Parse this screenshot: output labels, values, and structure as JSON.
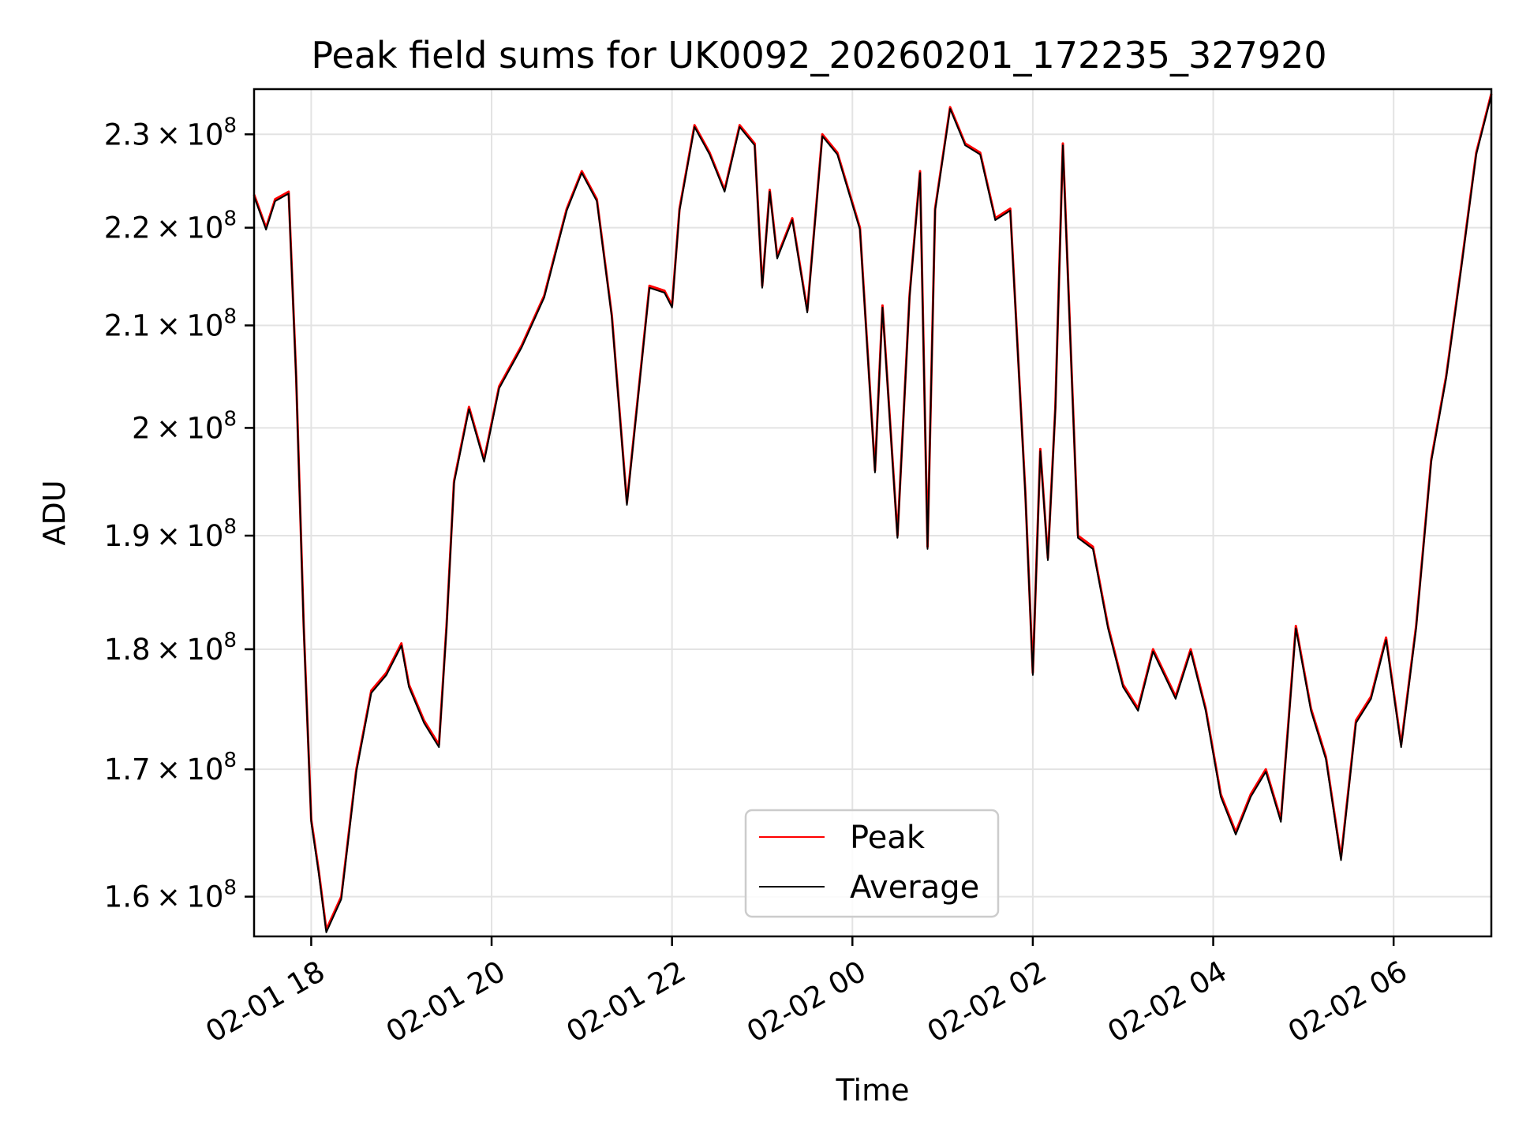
{
  "chart_data": {
    "type": "line",
    "title": "Peak field sums for UK0092_20260201_172235_327920",
    "xlabel": "Time",
    "ylabel": "ADU",
    "y_scale": "log",
    "ylim": [
      157000000,
      235000000
    ],
    "xlim": [
      "2026-02-01 17:22",
      "2026-02-02 07:05"
    ],
    "grid": true,
    "legend_position": "lower-center",
    "x_ticks": [
      {
        "label": "02-01 18",
        "value": "2026-02-01 18:00"
      },
      {
        "label": "02-01 20",
        "value": "2026-02-01 20:00"
      },
      {
        "label": "02-01 22",
        "value": "2026-02-01 22:00"
      },
      {
        "label": "02-02 00",
        "value": "2026-02-02 00:00"
      },
      {
        "label": "02-02 02",
        "value": "2026-02-02 02:00"
      },
      {
        "label": "02-02 04",
        "value": "2026-02-02 04:00"
      },
      {
        "label": "02-02 06",
        "value": "2026-02-02 06:00"
      }
    ],
    "y_ticks": [
      {
        "mantissa": "1.6",
        "value": 160000000
      },
      {
        "mantissa": "1.7",
        "value": 170000000
      },
      {
        "mantissa": "1.8",
        "value": 180000000
      },
      {
        "mantissa": "1.9",
        "value": 190000000
      },
      {
        "mantissa": "2",
        "value": 200000000
      },
      {
        "mantissa": "2.1",
        "value": 210000000
      },
      {
        "mantissa": "2.2",
        "value": 220000000
      },
      {
        "mantissa": "2.3",
        "value": 230000000
      }
    ],
    "series": [
      {
        "name": "Peak",
        "color": "#ff0000",
        "x": [
          "2026-02-01 17:22",
          "2026-02-01 17:30",
          "2026-02-01 17:36",
          "2026-02-01 17:45",
          "2026-02-01 17:50",
          "2026-02-01 17:55",
          "2026-02-01 18:00",
          "2026-02-01 18:05",
          "2026-02-01 18:10",
          "2026-02-01 18:20",
          "2026-02-01 18:30",
          "2026-02-01 18:40",
          "2026-02-01 18:50",
          "2026-02-01 19:00",
          "2026-02-01 19:05",
          "2026-02-01 19:15",
          "2026-02-01 19:25",
          "2026-02-01 19:30",
          "2026-02-01 19:35",
          "2026-02-01 19:45",
          "2026-02-01 19:55",
          "2026-02-01 20:05",
          "2026-02-01 20:20",
          "2026-02-01 20:35",
          "2026-02-01 20:45",
          "2026-02-01 20:50",
          "2026-02-01 21:00",
          "2026-02-01 21:10",
          "2026-02-01 21:20",
          "2026-02-01 21:30",
          "2026-02-01 21:45",
          "2026-02-01 21:55",
          "2026-02-01 22:00",
          "2026-02-01 22:05",
          "2026-02-01 22:15",
          "2026-02-01 22:25",
          "2026-02-01 22:30",
          "2026-02-01 22:35",
          "2026-02-01 22:45",
          "2026-02-01 22:55",
          "2026-02-01 23:00",
          "2026-02-01 23:05",
          "2026-02-01 23:10",
          "2026-02-01 23:20",
          "2026-02-01 23:30",
          "2026-02-01 23:40",
          "2026-02-01 23:50",
          "2026-02-02 00:05",
          "2026-02-02 00:15",
          "2026-02-02 00:20",
          "2026-02-02 00:30",
          "2026-02-02 00:38",
          "2026-02-02 00:45",
          "2026-02-02 00:50",
          "2026-02-02 00:55",
          "2026-02-02 01:05",
          "2026-02-02 01:15",
          "2026-02-02 01:25",
          "2026-02-02 01:35",
          "2026-02-02 01:45",
          "2026-02-02 01:55",
          "2026-02-02 02:00",
          "2026-02-02 02:05",
          "2026-02-02 02:10",
          "2026-02-02 02:15",
          "2026-02-02 02:20",
          "2026-02-02 02:30",
          "2026-02-02 02:40",
          "2026-02-02 02:50",
          "2026-02-02 03:00",
          "2026-02-02 03:10",
          "2026-02-02 03:20",
          "2026-02-02 03:35",
          "2026-02-02 03:45",
          "2026-02-02 03:55",
          "2026-02-02 04:05",
          "2026-02-02 04:15",
          "2026-02-02 04:25",
          "2026-02-02 04:35",
          "2026-02-02 04:45",
          "2026-02-02 04:55",
          "2026-02-02 05:05",
          "2026-02-02 05:15",
          "2026-02-02 05:25",
          "2026-02-02 05:35",
          "2026-02-02 05:45",
          "2026-02-02 05:55",
          "2026-02-02 06:05",
          "2026-02-02 06:15",
          "2026-02-02 06:25",
          "2026-02-02 06:35",
          "2026-02-02 06:45",
          "2026-02-02 06:55",
          "2026-02-02 07:05"
        ],
        "values": [
          223500000,
          220000000,
          223000000,
          223800000,
          205000000,
          182000000,
          166000000,
          162000000,
          157500000,
          160000000,
          170000000,
          176500000,
          178000000,
          180500000,
          177000000,
          174000000,
          172000000,
          182000000,
          195000000,
          202000000,
          197000000,
          204000000,
          208000000,
          213000000,
          219000000,
          222000000,
          226000000,
          223000000,
          211000000,
          193000000,
          214000000,
          213500000,
          212000000,
          222000000,
          231000000,
          228000000,
          226000000,
          224000000,
          231000000,
          229000000,
          214000000,
          224000000,
          217000000,
          221000000,
          211500000,
          230000000,
          228000000,
          220000000,
          196000000,
          212000000,
          190000000,
          213000000,
          226000000,
          189000000,
          222000000,
          233000000,
          229000000,
          228000000,
          221000000,
          222000000,
          194000000,
          178000000,
          198000000,
          188000000,
          202000000,
          229000000,
          190000000,
          189000000,
          182000000,
          177000000,
          175000000,
          180000000,
          176000000,
          180000000,
          175000000,
          168000000,
          165000000,
          168000000,
          170000000,
          166000000,
          182000000,
          175000000,
          171000000,
          163000000,
          174000000,
          176000000,
          181000000,
          172000000,
          182000000,
          197000000,
          205000000,
          216000000,
          228000000,
          234500000
        ]
      },
      {
        "name": "Average",
        "color": "#000000",
        "x": [
          "2026-02-01 17:22",
          "2026-02-01 17:30",
          "2026-02-01 17:36",
          "2026-02-01 17:45",
          "2026-02-01 17:50",
          "2026-02-01 17:55",
          "2026-02-01 18:00",
          "2026-02-01 18:05",
          "2026-02-01 18:10",
          "2026-02-01 18:20",
          "2026-02-01 18:30",
          "2026-02-01 18:40",
          "2026-02-01 18:50",
          "2026-02-01 19:00",
          "2026-02-01 19:05",
          "2026-02-01 19:15",
          "2026-02-01 19:25",
          "2026-02-01 19:30",
          "2026-02-01 19:35",
          "2026-02-01 19:45",
          "2026-02-01 19:55",
          "2026-02-01 20:05",
          "2026-02-01 20:20",
          "2026-02-01 20:35",
          "2026-02-01 20:45",
          "2026-02-01 20:50",
          "2026-02-01 21:00",
          "2026-02-01 21:10",
          "2026-02-01 21:20",
          "2026-02-01 21:30",
          "2026-02-01 21:45",
          "2026-02-01 21:55",
          "2026-02-01 22:00",
          "2026-02-01 22:05",
          "2026-02-01 22:15",
          "2026-02-01 22:25",
          "2026-02-01 22:30",
          "2026-02-01 22:35",
          "2026-02-01 22:45",
          "2026-02-01 22:55",
          "2026-02-01 23:00",
          "2026-02-01 23:05",
          "2026-02-01 23:10",
          "2026-02-01 23:20",
          "2026-02-01 23:30",
          "2026-02-01 23:40",
          "2026-02-01 23:50",
          "2026-02-02 00:05",
          "2026-02-02 00:15",
          "2026-02-02 00:20",
          "2026-02-02 00:30",
          "2026-02-02 00:38",
          "2026-02-02 00:45",
          "2026-02-02 00:50",
          "2026-02-02 00:55",
          "2026-02-02 01:05",
          "2026-02-02 01:15",
          "2026-02-02 01:25",
          "2026-02-02 01:35",
          "2026-02-02 01:45",
          "2026-02-02 01:55",
          "2026-02-02 02:00",
          "2026-02-02 02:05",
          "2026-02-02 02:10",
          "2026-02-02 02:15",
          "2026-02-02 02:20",
          "2026-02-02 02:30",
          "2026-02-02 02:40",
          "2026-02-02 02:50",
          "2026-02-02 03:00",
          "2026-02-02 03:10",
          "2026-02-02 03:20",
          "2026-02-02 03:35",
          "2026-02-02 03:45",
          "2026-02-02 03:55",
          "2026-02-02 04:05",
          "2026-02-02 04:15",
          "2026-02-02 04:25",
          "2026-02-02 04:35",
          "2026-02-02 04:45",
          "2026-02-02 04:55",
          "2026-02-02 05:05",
          "2026-02-02 05:15",
          "2026-02-02 05:25",
          "2026-02-02 05:35",
          "2026-02-02 05:45",
          "2026-02-02 05:55",
          "2026-02-02 06:05",
          "2026-02-02 06:15",
          "2026-02-02 06:25",
          "2026-02-02 06:35",
          "2026-02-02 06:45",
          "2026-02-02 06:55",
          "2026-02-02 07:05"
        ],
        "values": [
          223300000,
          219800000,
          222800000,
          223600000,
          204800000,
          181800000,
          165800000,
          161800000,
          157300000,
          159800000,
          169800000,
          176300000,
          177800000,
          180300000,
          176800000,
          173800000,
          171800000,
          181800000,
          194800000,
          201800000,
          196800000,
          203800000,
          207800000,
          212800000,
          218800000,
          221800000,
          225800000,
          222800000,
          210800000,
          192800000,
          213800000,
          213300000,
          211800000,
          221800000,
          230800000,
          227800000,
          225800000,
          223800000,
          230800000,
          228800000,
          213800000,
          223800000,
          216800000,
          220800000,
          211300000,
          229800000,
          227800000,
          219800000,
          195800000,
          211800000,
          189800000,
          212800000,
          225800000,
          188800000,
          221800000,
          232800000,
          228800000,
          227800000,
          220800000,
          221800000,
          193800000,
          177800000,
          197800000,
          187800000,
          201800000,
          228800000,
          189800000,
          188800000,
          181800000,
          176800000,
          174800000,
          179800000,
          175800000,
          179800000,
          174800000,
          167800000,
          164800000,
          167800000,
          169800000,
          165800000,
          181800000,
          174800000,
          170800000,
          162800000,
          173800000,
          175800000,
          180800000,
          171800000,
          181800000,
          196800000,
          204800000,
          215800000,
          227800000,
          234300000
        ]
      }
    ]
  }
}
